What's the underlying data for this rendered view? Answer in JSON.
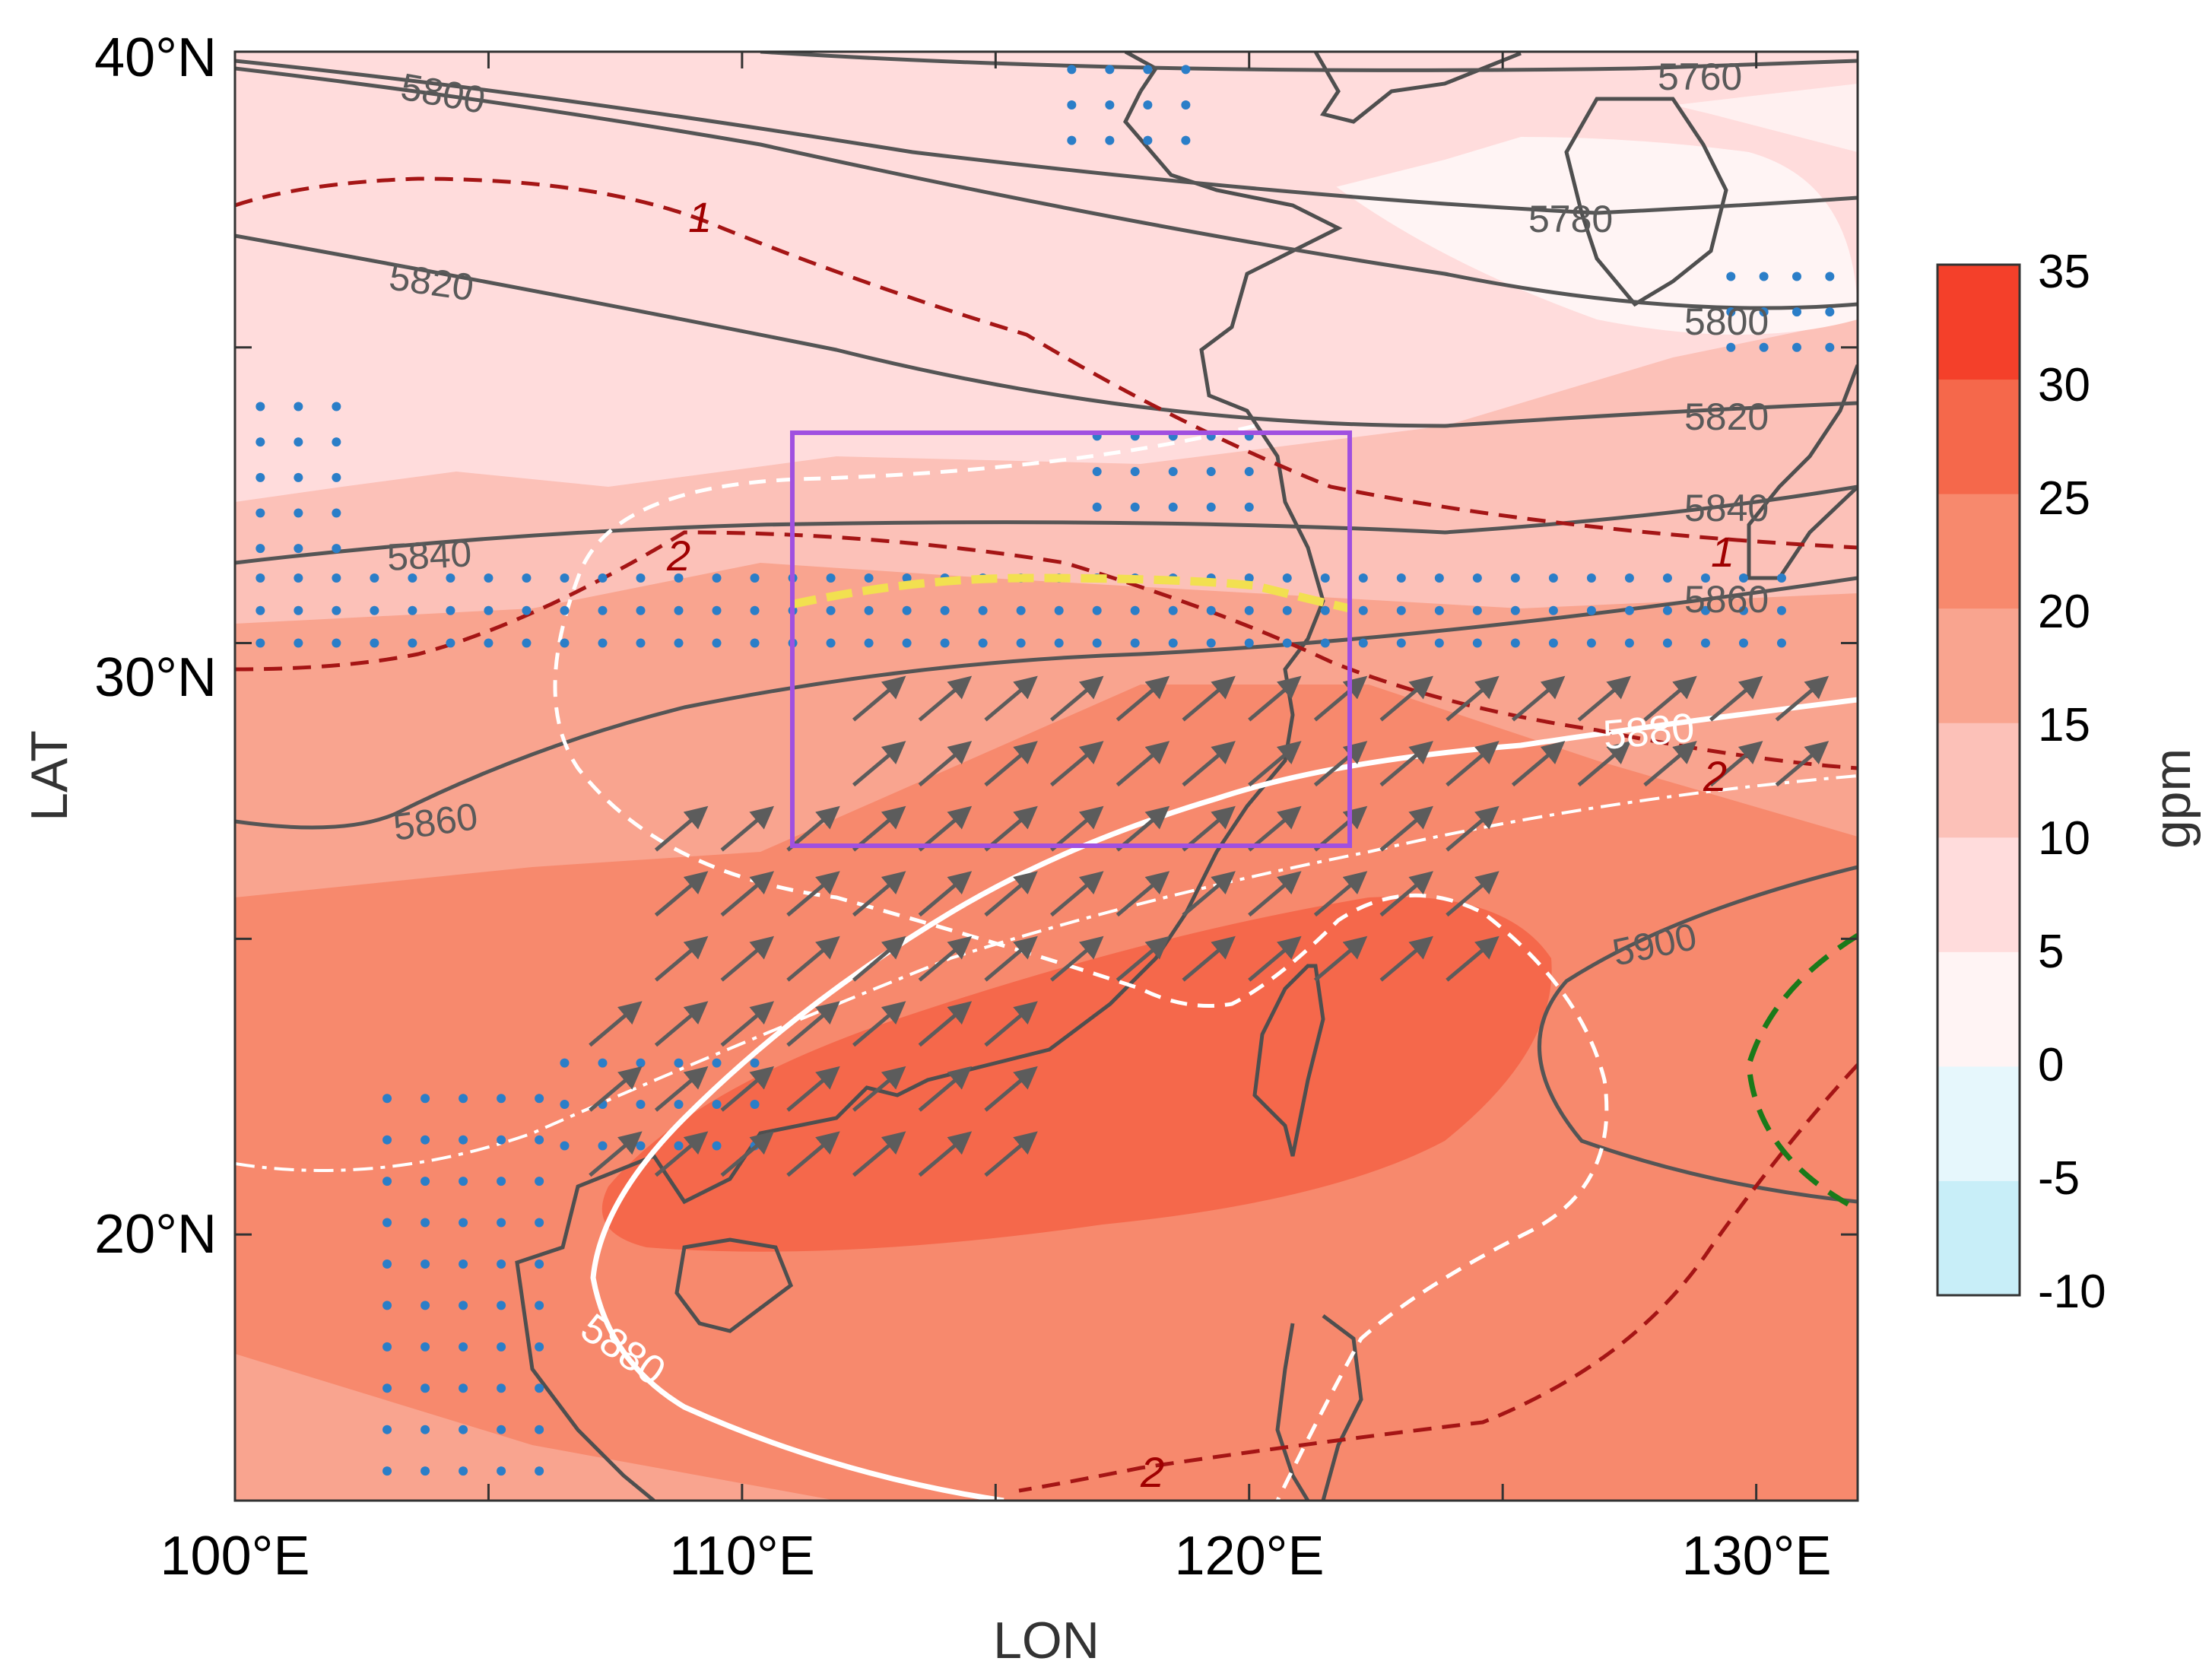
{
  "x_ticks": [
    {
      "lon": 100,
      "label": "100°E"
    },
    {
      "lon": 110,
      "label": "110°E"
    },
    {
      "lon": 120,
      "label": "120°E"
    },
    {
      "lon": 130,
      "label": "130°E"
    }
  ],
  "y_ticks": [
    {
      "lat": 20,
      "label": "20°N"
    },
    {
      "lat": 30,
      "label": "30°N"
    },
    {
      "lat": 40,
      "label": "40°N"
    }
  ],
  "xlabel": "LON",
  "ylabel": "LAT",
  "extent": {
    "lon": [
      100,
      132
    ],
    "lat": [
      15.5,
      40
    ]
  },
  "colorbar": {
    "label": "gpm",
    "ticks": [
      "35",
      "30",
      "25",
      "20",
      "15",
      "10",
      "5",
      "0",
      "-5",
      "-10"
    ],
    "levels": [
      -10,
      -5,
      0,
      5,
      10,
      15,
      20,
      25,
      30,
      35
    ],
    "colors": [
      "#c8eef8",
      "#e6f7fc",
      "#fff4f4",
      "#ffdcdc",
      "#fcc1b8",
      "#f9a48f",
      "#f7896d",
      "#f5684b",
      "#f4402a"
    ]
  },
  "contour_labels": {
    "c5760": "5760",
    "c5780": "5780",
    "c5800a": "5800",
    "c5800b": "5800",
    "c5820a": "5820",
    "c5820b": "5820",
    "c5840a": "5840",
    "c5840b": "5840",
    "c5860a": "5860",
    "c5860b": "5860",
    "c5880a": "5880",
    "c5880b": "5880",
    "c5900": "5900",
    "s1a": "1",
    "s1b": "1",
    "s2a": "2",
    "s2b": "2",
    "s2c": "2"
  },
  "box": {
    "lon": [
      111,
      122
    ],
    "lat": [
      27,
      34
    ]
  },
  "colors": {
    "contour": "#555555",
    "ridge_5880": "#ffffff",
    "dash_red": "#a51515",
    "box": "#a050e0",
    "yellow_line": "#f2e050",
    "green_dash": "#1a7a1a",
    "dots": "#2b7ec8",
    "arrows": "#5c5c5c"
  }
}
